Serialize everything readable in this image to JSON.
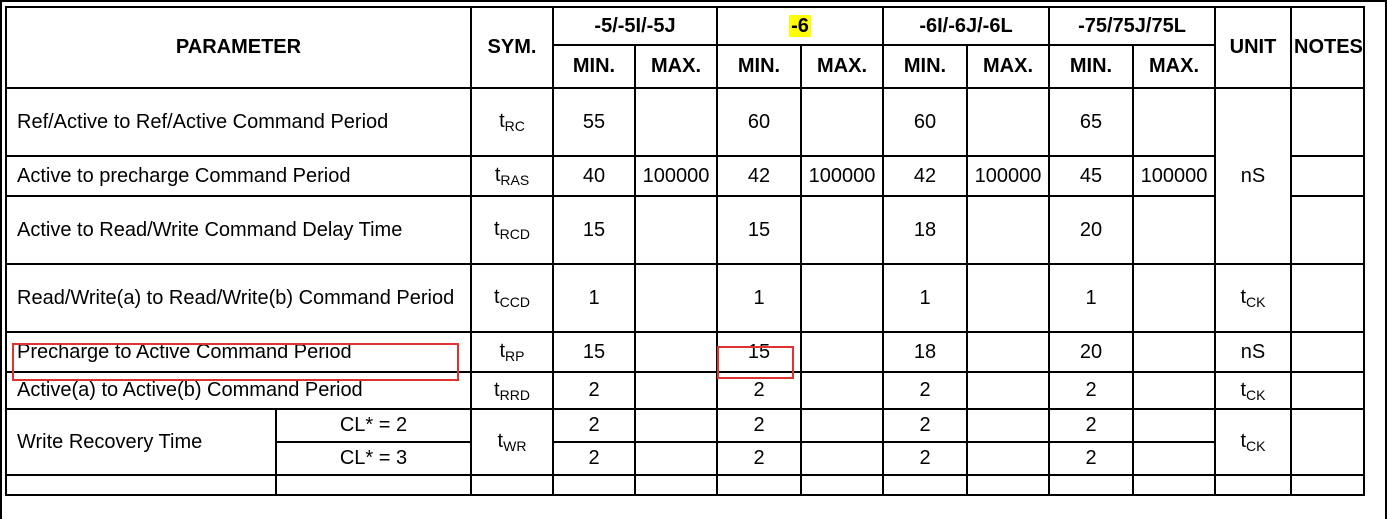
{
  "table": {
    "header": {
      "parameter": "PARAMETER",
      "sym": "SYM.",
      "groups": [
        "-5/-5I/-5J",
        "-6",
        "-6I/-6J/-6L",
        "-75/75J/75L"
      ],
      "min": "MIN.",
      "max": "MAX.",
      "unit": "UNIT",
      "notes": "NOTES"
    },
    "rows": [
      {
        "param": "Ref/Active to Ref/Active Command Period",
        "sym": "t",
        "sub": "RC",
        "vals": [
          "55",
          "",
          "60",
          "",
          "60",
          "",
          "65",
          ""
        ]
      },
      {
        "param": "Active to precharge Command Period",
        "sym": "t",
        "sub": "RAS",
        "vals": [
          "40",
          "100000",
          "42",
          "100000",
          "42",
          "100000",
          "45",
          "100000"
        ]
      },
      {
        "param": "Active to Read/Write Command Delay Time",
        "sym": "t",
        "sub": "RCD",
        "vals": [
          "15",
          "",
          "15",
          "",
          "18",
          "",
          "20",
          ""
        ]
      },
      {
        "param": "Read/Write(a) to Read/Write(b) Command Period",
        "sym": "t",
        "sub": "CCD",
        "vals": [
          "1",
          "",
          "1",
          "",
          "1",
          "",
          "1",
          ""
        ],
        "unit": "t",
        "unit_sub": "CK"
      },
      {
        "param": "Precharge to Active Command Period",
        "sym": "t",
        "sub": "RP",
        "vals": [
          "15",
          "",
          "15",
          "",
          "18",
          "",
          "20",
          ""
        ],
        "unit": "nS"
      },
      {
        "param": "Active(a) to Active(b) Command Period",
        "sym": "t",
        "sub": "RRD",
        "vals": [
          "2",
          "",
          "2",
          "",
          "2",
          "",
          "2",
          ""
        ],
        "unit": "t",
        "unit_sub": "CK"
      }
    ],
    "ns_unit": "nS",
    "write_recovery": {
      "param": "Write Recovery Time",
      "sym": "t",
      "sub": "WR",
      "cl2": "CL* = 2",
      "cl3": "CL* = 3",
      "vals2": [
        "2",
        "",
        "2",
        "",
        "2",
        "",
        "2",
        ""
      ],
      "vals3": [
        "2",
        "",
        "2",
        "",
        "2",
        "",
        "2",
        ""
      ],
      "unit": "t",
      "unit_sub": "CK"
    }
  },
  "colors": {
    "highlight": "#ffff00",
    "annotation_box": "#e0322e"
  }
}
